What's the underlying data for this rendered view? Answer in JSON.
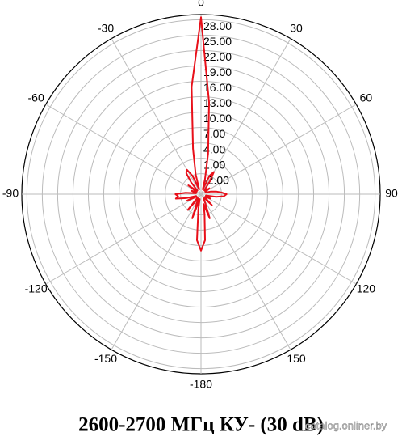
{
  "chart_data": {
    "type": "polar",
    "title": "2600-2700 МГц КУ- (30 dB)",
    "watermark": "catalog.onliner.by",
    "color": "#e8101a",
    "rlim": [
      -6,
      29
    ],
    "rticks": [
      {
        "value": -2,
        "label": "-2.00"
      },
      {
        "value": 1,
        "label": "1.00"
      },
      {
        "value": 4,
        "label": "4.00"
      },
      {
        "value": 7,
        "label": "7.00"
      },
      {
        "value": 10,
        "label": "10.00"
      },
      {
        "value": 13,
        "label": "13.00"
      },
      {
        "value": 16,
        "label": "16.00"
      },
      {
        "value": 19,
        "label": "19.00"
      },
      {
        "value": 22,
        "label": "22.00"
      },
      {
        "value": 25,
        "label": "25.00"
      },
      {
        "value": 28,
        "label": "28.00"
      }
    ],
    "thetaticks": [
      0,
      30,
      60,
      90,
      120,
      150,
      -180,
      -150,
      -120,
      -90,
      -60,
      -30
    ],
    "theta": [
      -180,
      -175,
      -170,
      -165,
      -160,
      -155,
      -150,
      -145,
      -140,
      -135,
      -130,
      -125,
      -120,
      -115,
      -110,
      -105,
      -100,
      -95,
      -90,
      -85,
      -80,
      -75,
      -70,
      -65,
      -60,
      -55,
      -50,
      -45,
      -40,
      -35,
      -30,
      -25,
      -20,
      -15,
      -10,
      -5,
      0,
      5,
      10,
      15,
      20,
      25,
      30,
      35,
      40,
      45,
      50,
      55,
      60,
      65,
      70,
      75,
      80,
      85,
      90,
      95,
      100,
      105,
      110,
      115,
      120,
      125,
      130,
      135,
      140,
      145,
      150,
      155,
      160,
      165,
      170,
      175
    ],
    "r": [
      5,
      3,
      -3,
      -5,
      -1,
      -4,
      -5,
      -5,
      -2,
      -5,
      -5,
      -5,
      -5,
      -3,
      -5,
      -3,
      -1,
      -1.5,
      -1,
      -3,
      -5,
      -5,
      -4,
      -5,
      -5,
      -3,
      -5,
      -5,
      -3,
      -1,
      -0.5,
      -2,
      -5,
      -2,
      3,
      15,
      28.5,
      12,
      2,
      -3,
      -5,
      -2,
      -1,
      -3,
      -5,
      -5,
      -5,
      -4,
      -5,
      -5,
      -5,
      -4,
      -3,
      -2,
      -1,
      -1.5,
      -3,
      -5,
      -5,
      -4,
      -5,
      -5,
      -5,
      -3,
      -5,
      -5,
      -5,
      -4,
      -1,
      -4,
      -2,
      3
    ]
  }
}
